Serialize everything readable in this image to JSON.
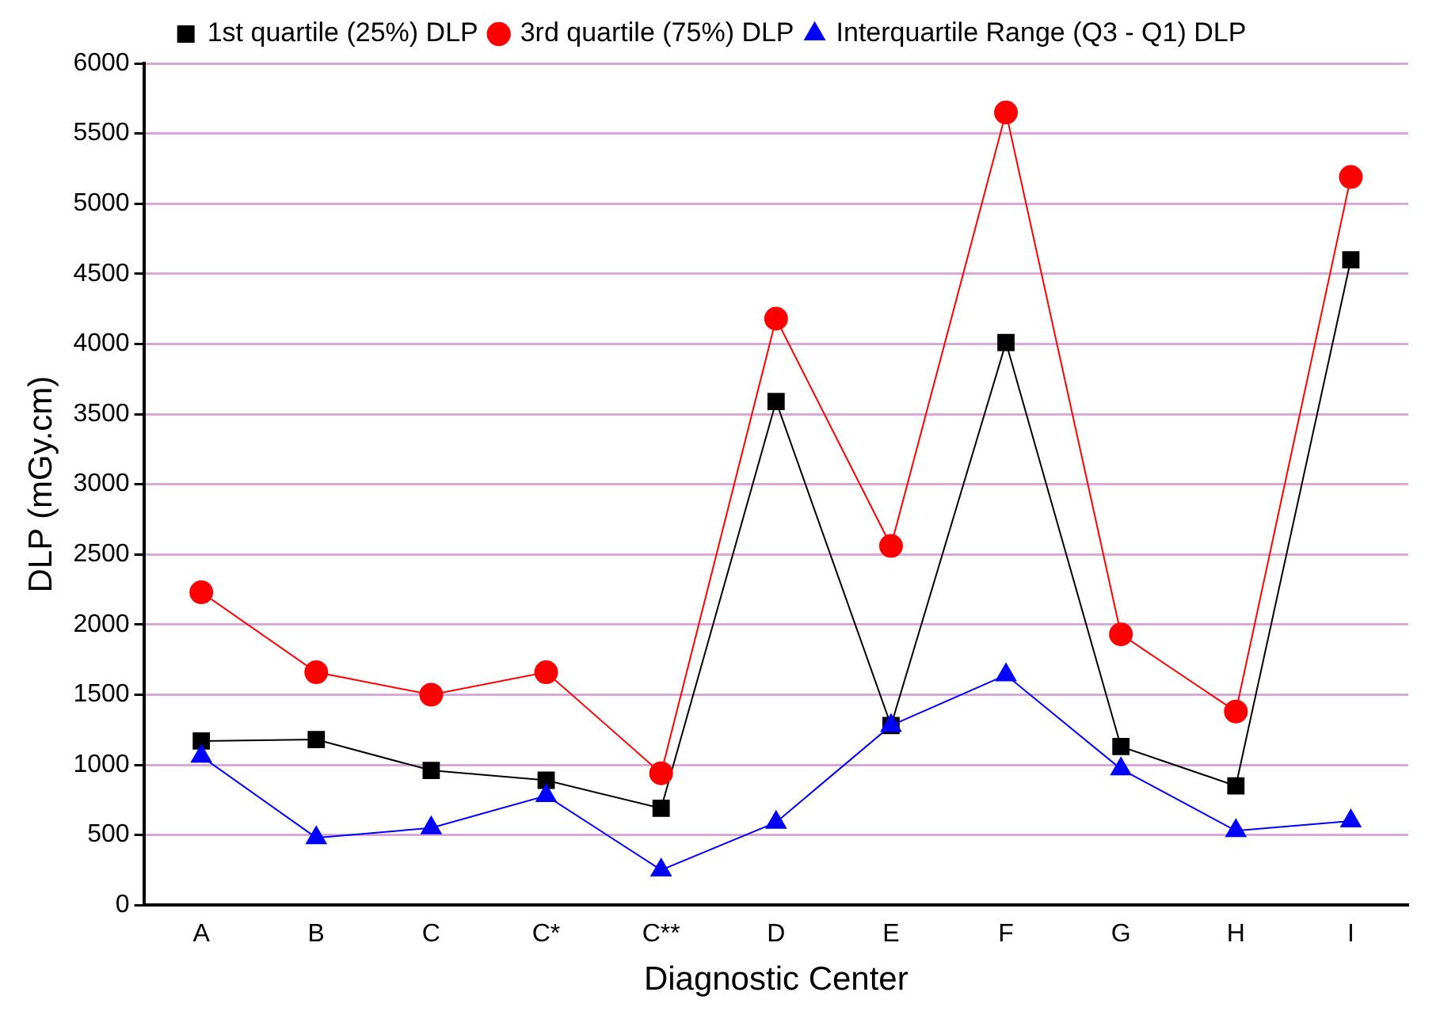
{
  "chart_data": {
    "type": "line",
    "xlabel": "Diagnostic Center",
    "ylabel": "DLP (mGy.cm)",
    "categories": [
      "A",
      "B",
      "C",
      "C*",
      "C**",
      "D",
      "E",
      "F",
      "G",
      "H",
      "I"
    ],
    "series": [
      {
        "name": "1st quartile (25%) DLP",
        "color": "#000000",
        "marker": "square",
        "values": [
          1170,
          1180,
          960,
          890,
          690,
          3590,
          1280,
          4010,
          1130,
          850,
          4600
        ]
      },
      {
        "name": "3rd quartile (75%) DLP",
        "color": "#ff0000",
        "marker": "circle",
        "values": [
          2230,
          1660,
          1500,
          1660,
          940,
          4180,
          2560,
          5650,
          1930,
          1380,
          5190
        ]
      },
      {
        "name": "Interquartile Range (Q3 - Q1) DLP",
        "color": "#0000ff",
        "marker": "triangle",
        "values": [
          1060,
          480,
          550,
          780,
          250,
          590,
          1280,
          1640,
          970,
          530,
          600
        ]
      }
    ],
    "ylim": [
      0,
      6000
    ],
    "yticks": [
      0,
      500,
      1000,
      1500,
      2000,
      2500,
      3000,
      3500,
      4000,
      4500,
      5000,
      5500,
      6000
    ],
    "grid": "y",
    "legend": "top",
    "line_style": "solid"
  }
}
